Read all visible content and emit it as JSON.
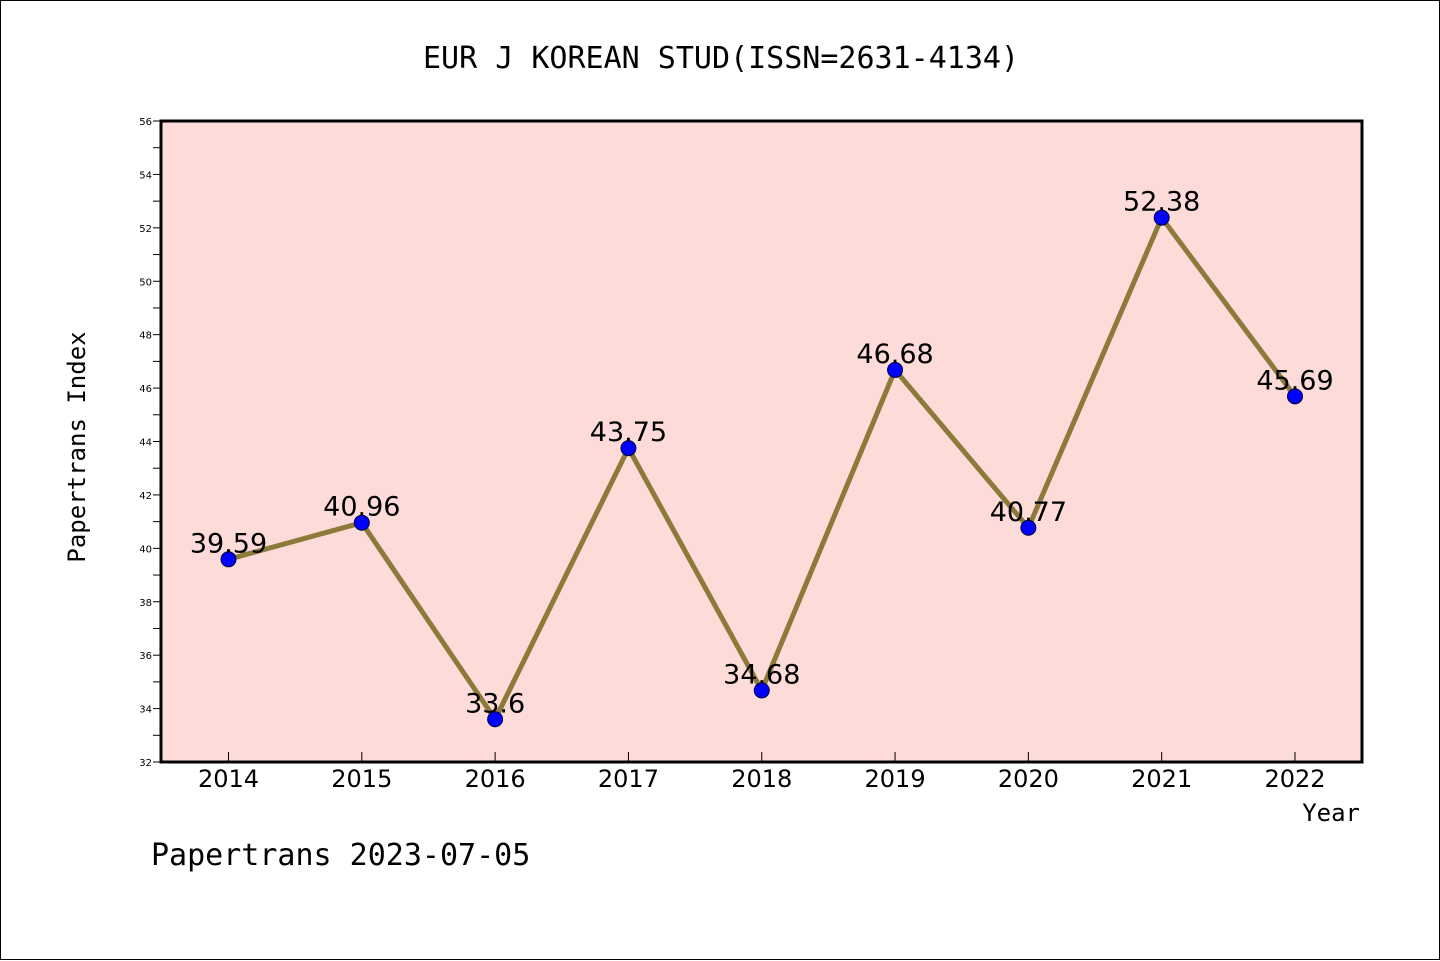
{
  "chart_data": {
    "type": "line",
    "title": "EUR J KOREAN STUD(ISSN=2631-4134)",
    "xlabel": "Year",
    "ylabel": "Papertrans Index",
    "categories": [
      "2014",
      "2015",
      "2016",
      "2017",
      "2018",
      "2019",
      "2020",
      "2021",
      "2022"
    ],
    "series": [
      {
        "values": [
          39.59,
          40.96,
          33.6,
          43.75,
          34.68,
          46.68,
          40.77,
          52.38,
          45.69
        ],
        "labels": [
          "39.59",
          "40.96",
          "33.6",
          "43.75",
          "34.68",
          "46.68",
          "40.77",
          "52.38",
          "45.69"
        ]
      }
    ],
    "ylim": [
      32,
      56
    ],
    "yticks": [
      "32",
      "34",
      "36",
      "38",
      "40",
      "42",
      "44",
      "46",
      "48",
      "50",
      "52",
      "54",
      "56"
    ],
    "grid": false,
    "colors": {
      "plot_background": "#fddbd8",
      "line": "#8b7a3a",
      "marker": "#0000ff"
    }
  },
  "footer": "Papertrans 2023-07-05"
}
